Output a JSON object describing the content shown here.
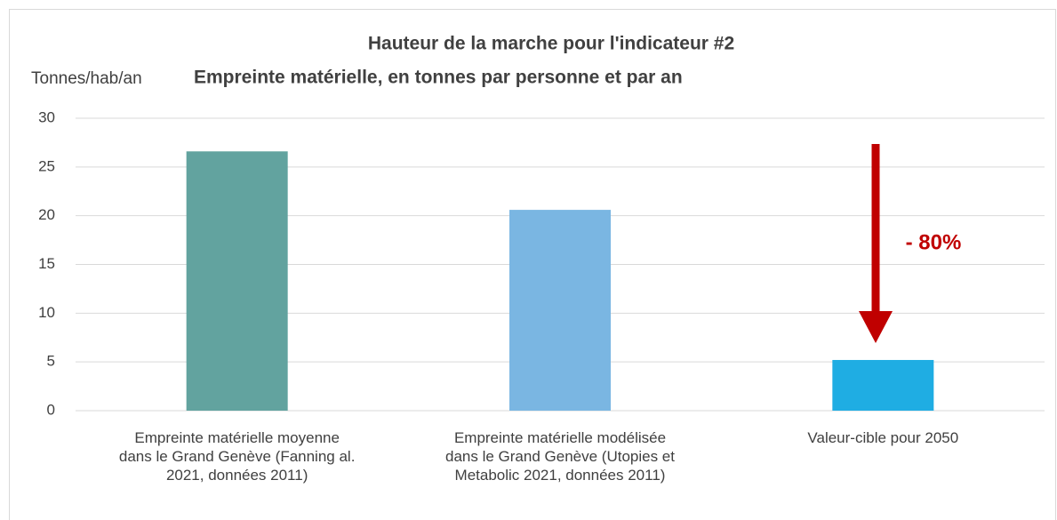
{
  "chart_data": {
    "type": "bar",
    "title": "Hauteur de la marche pour l'indicateur #2",
    "subtitle": "Empreinte matérielle, en tonnes par personne et par an",
    "y_axis_label": "Tonnes/hab/an",
    "categories": [
      "Empreinte matérielle moyenne dans le Grand Genève (Fanning al. 2021, données 2011)",
      "Empreinte matérielle modélisée dans le Grand Genève (Utopies et Metabolic 2021, données 2011)",
      "Valeur-cible pour 2050"
    ],
    "values": [
      26.6,
      20.6,
      5.2
    ],
    "colors": [
      "#62a39f",
      "#7ab6e2",
      "#1fade3"
    ],
    "annotation": "- 80%",
    "ylim": [
      0,
      30
    ],
    "yticks": [
      0,
      5,
      10,
      15,
      20,
      25,
      30
    ],
    "grid": true
  }
}
